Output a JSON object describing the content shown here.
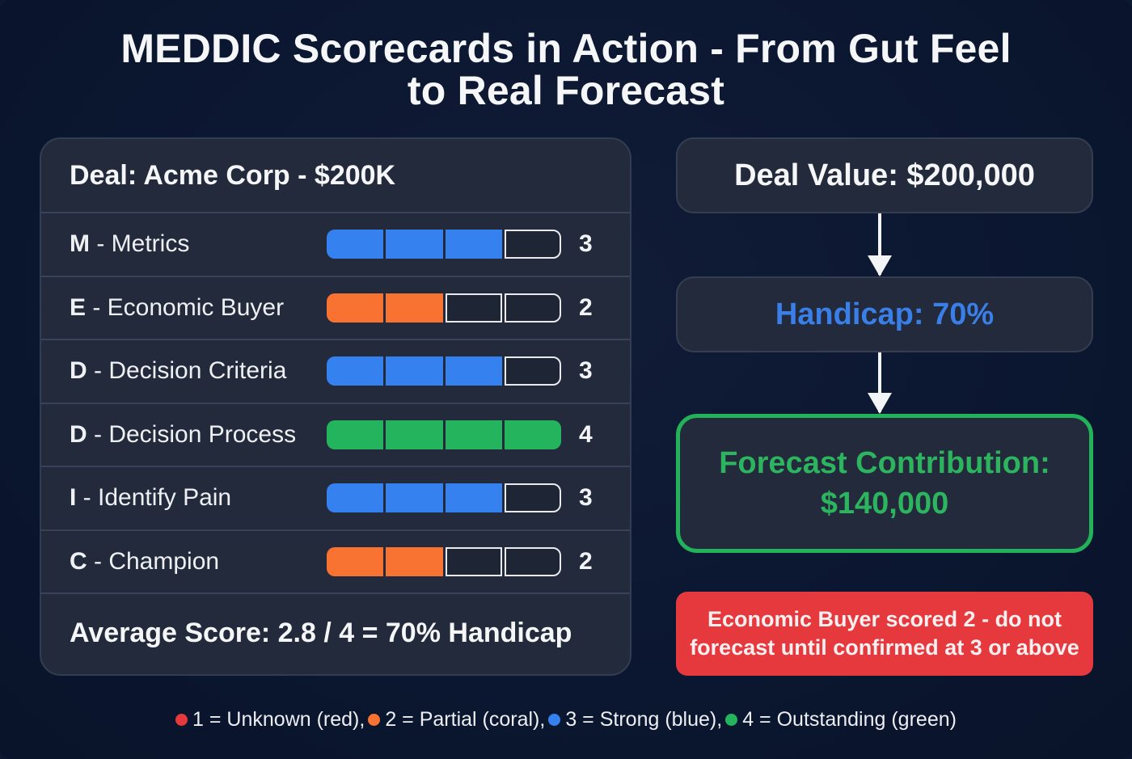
{
  "title": {
    "line1": "MEDDIC Scorecards in Action - From Gut Feel",
    "line2": "to Real Forecast"
  },
  "colors": {
    "red": "#e5393d",
    "coral": "#f87232",
    "blue": "#3581ef",
    "green": "#24b45d",
    "background": "#0c1730",
    "card": "#222a3b"
  },
  "scorecard": {
    "header": "Deal: Acme Corp - $200K",
    "max_score": 4,
    "rows": [
      {
        "letter": "M",
        "name": " - Metrics",
        "score": "3",
        "color": "blue"
      },
      {
        "letter": "E",
        "name": " - Economic Buyer",
        "score": "2",
        "color": "coral"
      },
      {
        "letter": "D",
        "name": " - Decision Criteria",
        "score": "3",
        "color": "blue"
      },
      {
        "letter": "D",
        "name": " - Decision Process",
        "score": "4",
        "color": "green"
      },
      {
        "letter": "I",
        "name": " - Identify Pain",
        "score": "3",
        "color": "blue"
      },
      {
        "letter": "C",
        "name": " - Champion",
        "score": "2",
        "color": "coral"
      }
    ],
    "footer": "Average Score: 2.8 / 4 = 70% Handicap"
  },
  "flow": {
    "deal_value": "Deal Value: $200,000",
    "handicap": "Handicap: 70%",
    "forecast_line1": "Forecast Contribution:",
    "forecast_line2": "$140,000"
  },
  "warning": "Economic Buyer scored 2 - do not forecast until confirmed at 3 or above",
  "legend": [
    {
      "text": "1 = Unknown (red),",
      "color": "#e5393d"
    },
    {
      "text": "2 = Partial (coral),",
      "color": "#f87232"
    },
    {
      "text": "3 = Strong (blue),",
      "color": "#3581ef"
    },
    {
      "text": "4 = Outstanding (green)",
      "color": "#24b45d"
    }
  ]
}
